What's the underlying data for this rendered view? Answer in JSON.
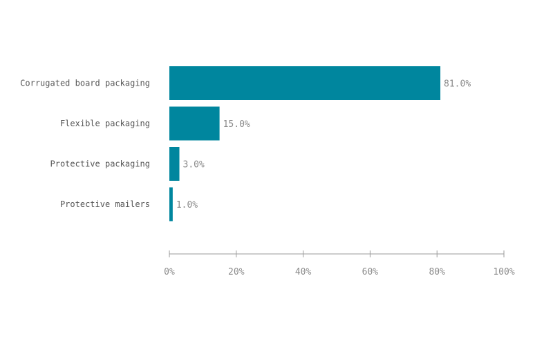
{
  "chart_data": {
    "type": "bar",
    "orientation": "horizontal",
    "categories": [
      "Corrugated board packaging",
      "Flexible packaging",
      "Protective packaging",
      "Protective mailers"
    ],
    "values": [
      81.0,
      15.0,
      3.0,
      1.0
    ],
    "value_labels": [
      "81.0%",
      "15.0%",
      "3.0%",
      "1.0%"
    ],
    "xlim": [
      0,
      100
    ],
    "x_ticks": [
      0,
      20,
      40,
      60,
      80,
      100
    ],
    "x_tick_labels": [
      "0%",
      "20%",
      "40%",
      "60%",
      "80%",
      "100%"
    ],
    "bar_color": "#00869e",
    "grid": false,
    "legend": "none"
  }
}
